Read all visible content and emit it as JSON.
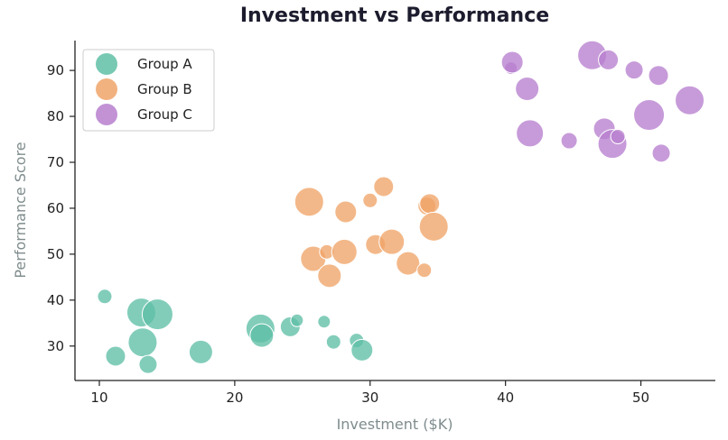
{
  "chart_data": {
    "type": "scatter",
    "title": "Investment vs Performance",
    "xlabel": "Investment ($K)",
    "ylabel": "Performance Score",
    "xlim": [
      8.2,
      55.5
    ],
    "ylim": [
      22.5,
      96.5
    ],
    "xticks": [
      10,
      20,
      30,
      40,
      50
    ],
    "yticks": [
      30,
      40,
      50,
      60,
      70,
      80,
      90
    ],
    "grid": false,
    "legend_position": "top-left",
    "series": [
      {
        "name": "Group A",
        "color": "#5fbfa6",
        "points": [
          {
            "x": 10.4,
            "y": 40.8,
            "size": 8
          },
          {
            "x": 11.2,
            "y": 27.8,
            "size": 11
          },
          {
            "x": 13.1,
            "y": 37.3,
            "size": 16
          },
          {
            "x": 13.2,
            "y": 30.8,
            "size": 16
          },
          {
            "x": 13.6,
            "y": 26.0,
            "size": 10
          },
          {
            "x": 14.3,
            "y": 36.9,
            "size": 17
          },
          {
            "x": 17.5,
            "y": 28.7,
            "size": 13
          },
          {
            "x": 21.9,
            "y": 33.8,
            "size": 16
          },
          {
            "x": 22.0,
            "y": 32.3,
            "size": 13
          },
          {
            "x": 24.1,
            "y": 34.2,
            "size": 11
          },
          {
            "x": 24.6,
            "y": 35.6,
            "size": 7
          },
          {
            "x": 26.6,
            "y": 35.3,
            "size": 7
          },
          {
            "x": 27.3,
            "y": 30.9,
            "size": 8
          },
          {
            "x": 29.0,
            "y": 31.2,
            "size": 8
          },
          {
            "x": 29.4,
            "y": 29.1,
            "size": 12
          }
        ]
      },
      {
        "name": "Group B",
        "color": "#f0a468",
        "points": [
          {
            "x": 25.5,
            "y": 61.4,
            "size": 16
          },
          {
            "x": 25.8,
            "y": 49.0,
            "size": 14
          },
          {
            "x": 26.8,
            "y": 50.5,
            "size": 8
          },
          {
            "x": 27.0,
            "y": 45.3,
            "size": 13
          },
          {
            "x": 28.1,
            "y": 50.5,
            "size": 14
          },
          {
            "x": 28.2,
            "y": 59.2,
            "size": 12
          },
          {
            "x": 30.0,
            "y": 61.7,
            "size": 8
          },
          {
            "x": 30.4,
            "y": 52.1,
            "size": 11
          },
          {
            "x": 31.0,
            "y": 64.7,
            "size": 11
          },
          {
            "x": 31.6,
            "y": 52.7,
            "size": 14
          },
          {
            "x": 32.8,
            "y": 48.0,
            "size": 13
          },
          {
            "x": 34.0,
            "y": 46.5,
            "size": 8
          },
          {
            "x": 34.2,
            "y": 60.5,
            "size": 10
          },
          {
            "x": 34.4,
            "y": 61.0,
            "size": 11
          },
          {
            "x": 34.7,
            "y": 56.0,
            "size": 16
          }
        ]
      },
      {
        "name": "Group C",
        "color": "#b77fce",
        "points": [
          {
            "x": 40.4,
            "y": 90.5,
            "size": 7
          },
          {
            "x": 40.5,
            "y": 91.8,
            "size": 12
          },
          {
            "x": 41.6,
            "y": 86.0,
            "size": 13
          },
          {
            "x": 41.8,
            "y": 76.3,
            "size": 15
          },
          {
            "x": 44.7,
            "y": 74.7,
            "size": 9
          },
          {
            "x": 46.4,
            "y": 93.3,
            "size": 16
          },
          {
            "x": 47.3,
            "y": 77.3,
            "size": 12
          },
          {
            "x": 47.6,
            "y": 92.3,
            "size": 11
          },
          {
            "x": 47.9,
            "y": 74.0,
            "size": 16
          },
          {
            "x": 48.3,
            "y": 75.6,
            "size": 8
          },
          {
            "x": 49.5,
            "y": 90.1,
            "size": 10
          },
          {
            "x": 50.6,
            "y": 80.3,
            "size": 17
          },
          {
            "x": 51.3,
            "y": 88.9,
            "size": 11
          },
          {
            "x": 51.5,
            "y": 72.0,
            "size": 10
          },
          {
            "x": 53.6,
            "y": 83.5,
            "size": 16
          }
        ]
      }
    ]
  }
}
